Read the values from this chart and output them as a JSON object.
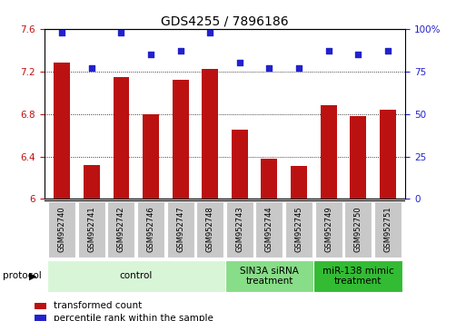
{
  "title": "GDS4255 / 7896186",
  "samples": [
    "GSM952740",
    "GSM952741",
    "GSM952742",
    "GSM952746",
    "GSM952747",
    "GSM952748",
    "GSM952743",
    "GSM952744",
    "GSM952745",
    "GSM952749",
    "GSM952750",
    "GSM952751"
  ],
  "bar_values": [
    7.28,
    6.32,
    7.15,
    6.8,
    7.12,
    7.22,
    6.65,
    6.38,
    6.31,
    6.88,
    6.78,
    6.84
  ],
  "dot_values": [
    98,
    77,
    98,
    85,
    87,
    98,
    80,
    77,
    77,
    87,
    85,
    87
  ],
  "ylim_left": [
    6.0,
    7.6
  ],
  "ylim_right": [
    0,
    100
  ],
  "yticks_left": [
    6.0,
    6.4,
    6.8,
    7.2,
    7.6
  ],
  "yticks_right": [
    0,
    25,
    50,
    75,
    100
  ],
  "ytick_labels_left": [
    "6",
    "6.4",
    "6.8",
    "7.2",
    "7.6"
  ],
  "ytick_labels_right": [
    "0",
    "25",
    "50",
    "75",
    "100%"
  ],
  "bar_color": "#bb1111",
  "dot_color": "#2222cc",
  "grid_color": "#000000",
  "protocol_groups": [
    {
      "label": "control",
      "start": 0,
      "end": 6,
      "color": "#d8f5d8"
    },
    {
      "label": "SIN3A siRNA\ntreatment",
      "start": 6,
      "end": 9,
      "color": "#88dd88"
    },
    {
      "label": "miR-138 mimic\ntreatment",
      "start": 9,
      "end": 12,
      "color": "#33bb33"
    }
  ],
  "legend_items": [
    {
      "label": "transformed count",
      "color": "#bb1111"
    },
    {
      "label": "percentile rank within the sample",
      "color": "#2222cc"
    }
  ],
  "protocol_label": "protocol",
  "title_fontsize": 10,
  "tick_fontsize": 7.5,
  "sample_fontsize": 6,
  "legend_fontsize": 7.5,
  "proto_fontsize": 7.5
}
